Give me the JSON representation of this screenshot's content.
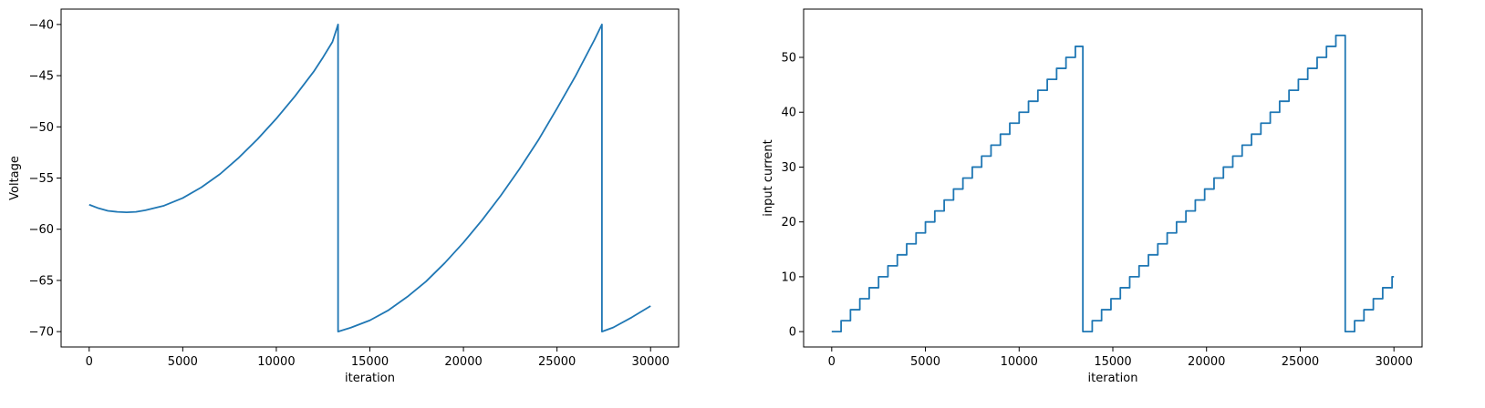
{
  "chart_data": [
    {
      "type": "line",
      "xlabel": "iteration",
      "ylabel": "Voltage",
      "xlim": [
        -1500,
        31500
      ],
      "ylim": [
        -71.5,
        -38.5
      ],
      "xticks": [
        0,
        5000,
        10000,
        15000,
        20000,
        25000,
        30000
      ],
      "yticks": [
        -70,
        -65,
        -60,
        -55,
        -50,
        -45,
        -40
      ],
      "ytick_labels": [
        "−70",
        "−65",
        "−60",
        "−55",
        "−50",
        "−45",
        "−40"
      ],
      "grid": false,
      "series_color": "#1f77b4",
      "series": [
        {
          "x": [
            0,
            500,
            1000,
            1500,
            2000,
            2500,
            3000,
            4000,
            5000,
            6000,
            7000,
            8000,
            9000,
            10000,
            11000,
            12000,
            12500,
            13000,
            13300,
            13300,
            14000,
            15000,
            16000,
            17000,
            18000,
            19000,
            20000,
            21000,
            22000,
            23000,
            24000,
            25000,
            26000,
            27000,
            27400,
            27400,
            28000,
            29000,
            30000
          ],
          "y": [
            -57.6,
            -57.95,
            -58.2,
            -58.3,
            -58.35,
            -58.3,
            -58.15,
            -57.7,
            -56.95,
            -55.9,
            -54.6,
            -53.0,
            -51.2,
            -49.2,
            -47.0,
            -44.6,
            -43.2,
            -41.7,
            -40.0,
            -70.0,
            -69.6,
            -68.9,
            -67.9,
            -66.6,
            -65.1,
            -63.3,
            -61.3,
            -59.1,
            -56.7,
            -54.1,
            -51.3,
            -48.2,
            -45.0,
            -41.5,
            -40.0,
            -70.0,
            -69.6,
            -68.6,
            -67.5
          ]
        }
      ]
    },
    {
      "type": "line",
      "xlabel": "iteration",
      "ylabel": "input current",
      "xlim": [
        -1500,
        31500
      ],
      "ylim": [
        -2.8,
        58.8
      ],
      "xticks": [
        0,
        5000,
        10000,
        15000,
        20000,
        25000,
        30000
      ],
      "yticks": [
        0,
        10,
        20,
        30,
        40,
        50
      ],
      "ytick_labels": [
        "0",
        "10",
        "20",
        "30",
        "40",
        "50"
      ],
      "grid": false,
      "series_color": "#1f77b4",
      "step": {
        "cycle_start": [
          0,
          13400,
          27400
        ],
        "cycle_end": [
          13400,
          27400,
          30000
        ],
        "step_width": 500,
        "step_increment": 2
      }
    }
  ]
}
